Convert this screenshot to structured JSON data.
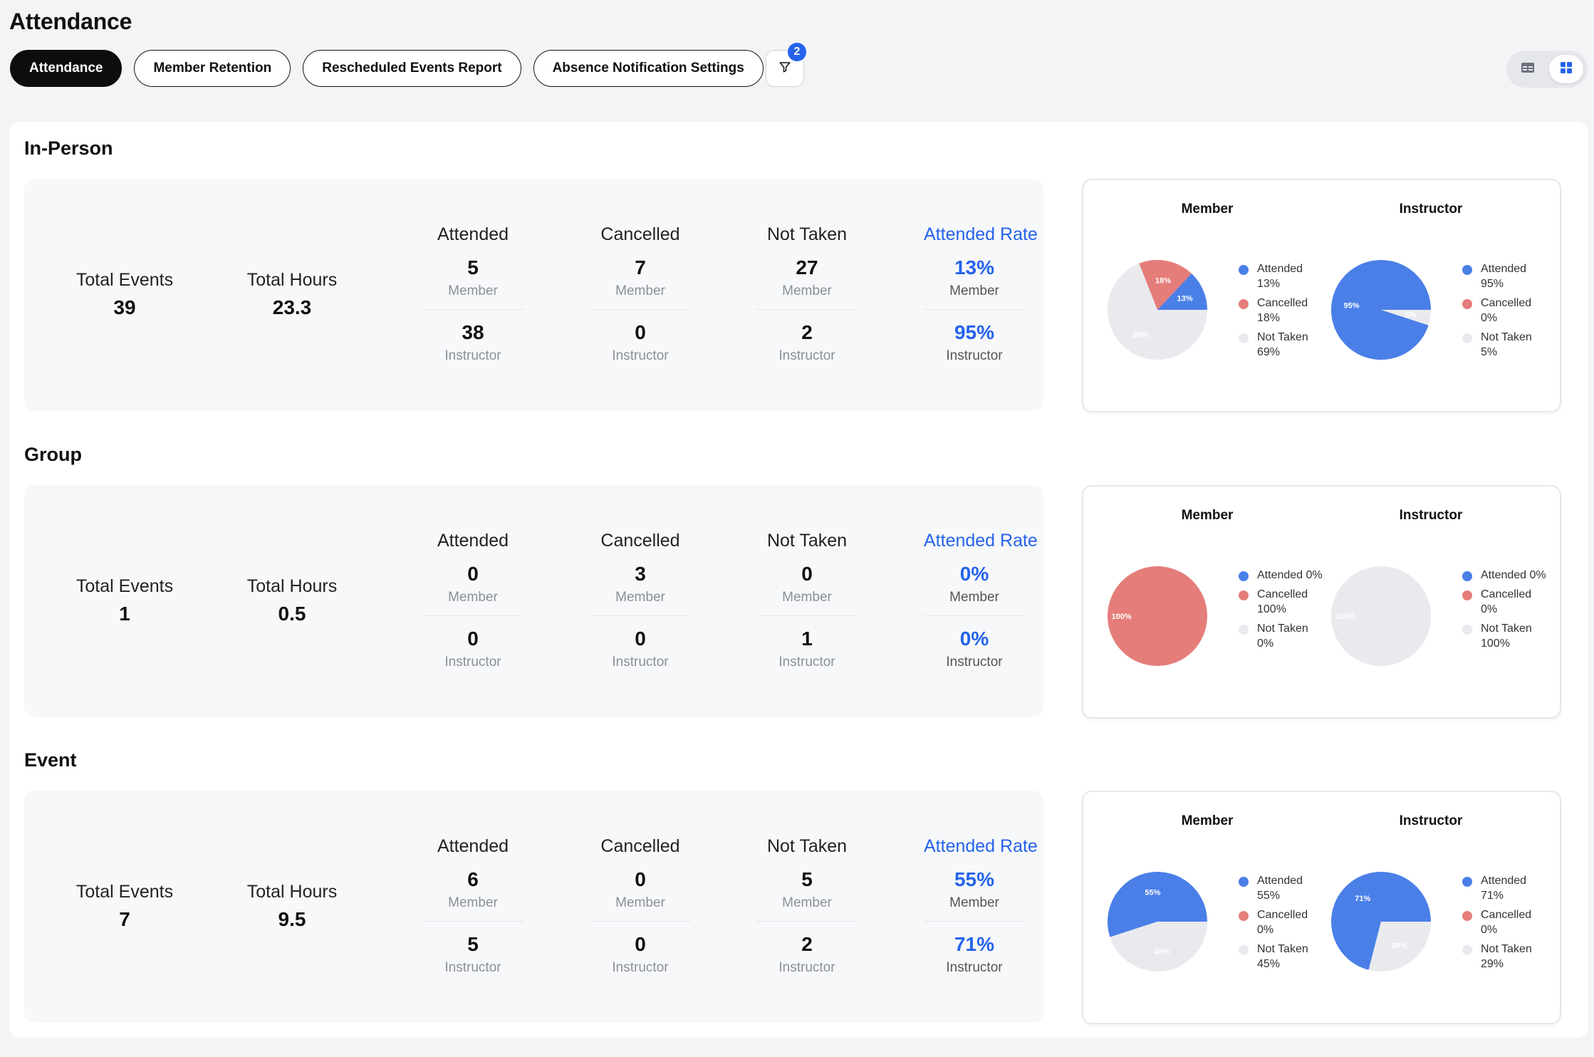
{
  "page": {
    "title": "Attendance"
  },
  "tabs": [
    {
      "label": "Attendance",
      "active": true
    },
    {
      "label": "Member Retention",
      "active": false
    },
    {
      "label": "Rescheduled Events Report",
      "active": false
    },
    {
      "label": "Absence Notification Settings",
      "active": false
    }
  ],
  "filter": {
    "icon": "filter-icon",
    "badge": "2"
  },
  "view_toggle": {
    "options": [
      "table-view-icon",
      "grid-view-icon"
    ],
    "active": "grid-view-icon"
  },
  "colors": {
    "attended": "#4a7fe8",
    "cancelled": "#e57d7a",
    "not_taken": "#e9eaee",
    "accent": "#2563eb"
  },
  "labels": {
    "total_events": "Total Events",
    "total_hours": "Total Hours",
    "attended": "Attended",
    "cancelled": "Cancelled",
    "not_taken": "Not Taken",
    "attended_rate": "Attended Rate",
    "member": "Member",
    "instructor": "Instructor"
  },
  "sections": [
    {
      "title": "In-Person",
      "total_events": "39",
      "total_hours": "23.3",
      "attended": {
        "member": "5",
        "instructor": "38"
      },
      "cancelled": {
        "member": "7",
        "instructor": "0"
      },
      "not_taken": {
        "member": "27",
        "instructor": "2"
      },
      "attended_rate": {
        "member": "13%",
        "instructor": "95%"
      }
    },
    {
      "title": "Group",
      "total_events": "1",
      "total_hours": "0.5",
      "attended": {
        "member": "0",
        "instructor": "0"
      },
      "cancelled": {
        "member": "3",
        "instructor": "0"
      },
      "not_taken": {
        "member": "0",
        "instructor": "1"
      },
      "attended_rate": {
        "member": "0%",
        "instructor": "0%"
      }
    },
    {
      "title": "Event",
      "total_events": "7",
      "total_hours": "9.5",
      "attended": {
        "member": "6",
        "instructor": "5"
      },
      "cancelled": {
        "member": "0",
        "instructor": "0"
      },
      "not_taken": {
        "member": "5",
        "instructor": "2"
      },
      "attended_rate": {
        "member": "55%",
        "instructor": "71%"
      }
    }
  ],
  "chart_data": [
    {
      "type": "pie",
      "title": "Member",
      "section": "In-Person",
      "categories": [
        "Attended",
        "Cancelled",
        "Not Taken"
      ],
      "values": [
        13,
        18,
        69
      ],
      "slice_labels": [
        "13%",
        "18%",
        "69%"
      ],
      "legend_entries": [
        "Attended\n13%",
        "Cancelled\n18%",
        "Not Taken\n69%"
      ]
    },
    {
      "type": "pie",
      "title": "Instructor",
      "section": "In-Person",
      "categories": [
        "Attended",
        "Cancelled",
        "Not Taken"
      ],
      "values": [
        95,
        0,
        5
      ],
      "slice_labels": [
        "95%",
        "",
        "5%"
      ],
      "legend_entries": [
        "Attended\n95%",
        "Cancelled\n0%",
        "Not Taken\n5%"
      ]
    },
    {
      "type": "pie",
      "title": "Member",
      "section": "Group",
      "categories": [
        "Attended",
        "Cancelled",
        "Not Taken"
      ],
      "values": [
        0,
        100,
        0
      ],
      "slice_labels": [
        "",
        "100%",
        ""
      ],
      "legend_entries": [
        "Attended 0%",
        "Cancelled\n100%",
        "Not Taken\n0%"
      ]
    },
    {
      "type": "pie",
      "title": "Instructor",
      "section": "Group",
      "categories": [
        "Attended",
        "Cancelled",
        "Not Taken"
      ],
      "values": [
        0,
        0,
        100
      ],
      "slice_labels": [
        "",
        "",
        "100%"
      ],
      "legend_entries": [
        "Attended 0%",
        "Cancelled\n0%",
        "Not Taken\n100%"
      ]
    },
    {
      "type": "pie",
      "title": "Member",
      "section": "Event",
      "categories": [
        "Attended",
        "Cancelled",
        "Not Taken"
      ],
      "values": [
        55,
        0,
        45
      ],
      "slice_labels": [
        "55%",
        "",
        "45%"
      ],
      "legend_entries": [
        "Attended\n55%",
        "Cancelled\n0%",
        "Not Taken\n45%"
      ]
    },
    {
      "type": "pie",
      "title": "Instructor",
      "section": "Event",
      "categories": [
        "Attended",
        "Cancelled",
        "Not Taken"
      ],
      "values": [
        71,
        0,
        29
      ],
      "slice_labels": [
        "71%",
        "",
        "29%"
      ],
      "legend_entries": [
        "Attended\n71%",
        "Cancelled\n0%",
        "Not Taken\n29%"
      ]
    }
  ]
}
